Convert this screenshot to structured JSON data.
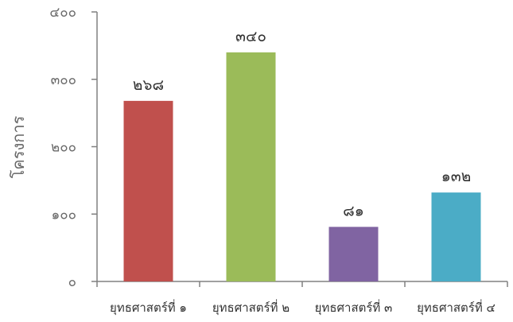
{
  "chart_data": {
    "type": "bar",
    "categories": [
      "ยุทธศาสตร์ที่ ๑",
      "ยุทธศาสตร์ที่ ๒",
      "ยุทธศาสตร์ที่ ๓",
      "ยุทธศาสตร์ที่ ๔"
    ],
    "values": [
      268,
      340,
      81,
      132
    ],
    "data_labels": [
      "๒๖๘",
      "๓๔๐",
      "๘๑",
      "๑๓๒"
    ],
    "colors": [
      "#c0504d",
      "#9bbb59",
      "#8064a2",
      "#4bacc6"
    ],
    "ylabel": "โครงการ",
    "xlabel": "",
    "title": "",
    "ylim": [
      0,
      400
    ],
    "yticks": [
      0,
      100,
      200,
      300,
      400
    ],
    "ytick_labels": [
      "๐",
      "๑๐๐",
      "๒๐๐",
      "๓๐๐",
      "๔๐๐"
    ],
    "grid": false,
    "legend": "none"
  }
}
